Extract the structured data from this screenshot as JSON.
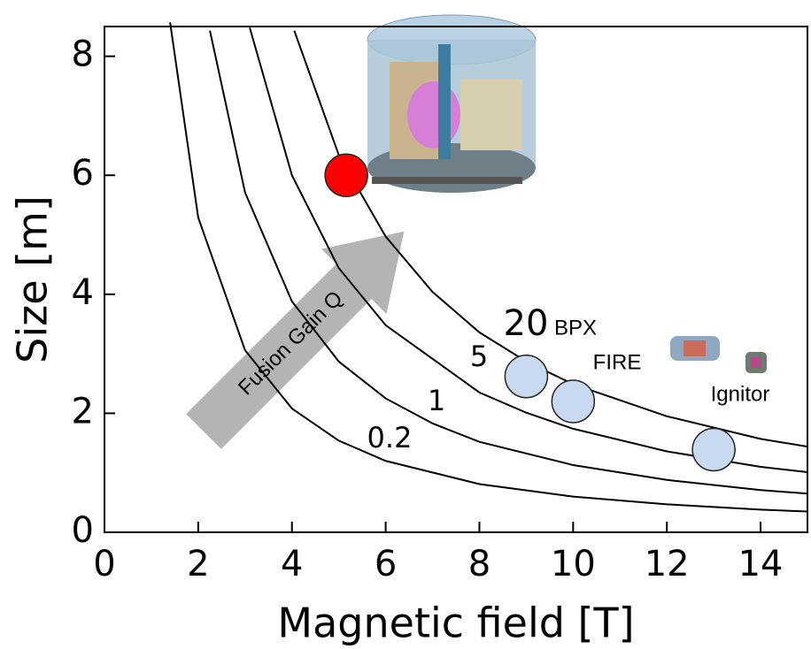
{
  "chart_data": {
    "type": "line",
    "x_label": "Magnetic field [T]",
    "y_label": "Size [m]",
    "xlim": [
      0,
      15
    ],
    "ylim": [
      0,
      8.5
    ],
    "xticks": [
      0,
      2,
      4,
      6,
      8,
      10,
      12,
      14
    ],
    "yticks": [
      0,
      2,
      4,
      6,
      8
    ],
    "series": [
      {
        "name": "0.2",
        "color": "#000000",
        "x": [
          1.4,
          2,
          3,
          4,
          5,
          6,
          8,
          10,
          12,
          14,
          15
        ],
        "values": [
          8.57,
          5.29,
          3.06,
          2.08,
          1.54,
          1.2,
          0.81,
          0.6,
          0.47,
          0.38,
          0.35
        ]
      },
      {
        "name": "1",
        "color": "#000000",
        "x": [
          2.25,
          3,
          4,
          5,
          6,
          7,
          8,
          10,
          12,
          14,
          15
        ],
        "values": [
          8.43,
          5.71,
          3.88,
          2.87,
          2.25,
          1.83,
          1.52,
          1.13,
          0.88,
          0.71,
          0.65
        ]
      },
      {
        "name": "5",
        "color": "#000000",
        "x": [
          3.1,
          4,
          5,
          6,
          8,
          9,
          10,
          12,
          14,
          15
        ],
        "values": [
          8.48,
          6.0,
          4.44,
          3.48,
          2.35,
          2.01,
          1.74,
          1.36,
          1.1,
          1.01
        ]
      },
      {
        "name": "20",
        "color": "#000000",
        "x": [
          4.05,
          5,
          6,
          7,
          8,
          9,
          10,
          12,
          14,
          15
        ],
        "values": [
          8.43,
          6.34,
          4.97,
          4.04,
          3.36,
          2.87,
          2.49,
          1.95,
          1.57,
          1.44
        ]
      }
    ],
    "points": {
      "x": [
        5.16,
        9.0,
        10.0,
        13.0
      ],
      "values": [
        6.0,
        2.62,
        2.2,
        1.39
      ],
      "labels": [
        null,
        "BPX",
        "FIRE",
        "Ignitor"
      ],
      "colors": [
        "#ff0000",
        "#c9d9ef",
        "#c9d9ef",
        "#c9d9ef"
      ]
    },
    "annotation": "Fusion Gain Q"
  }
}
